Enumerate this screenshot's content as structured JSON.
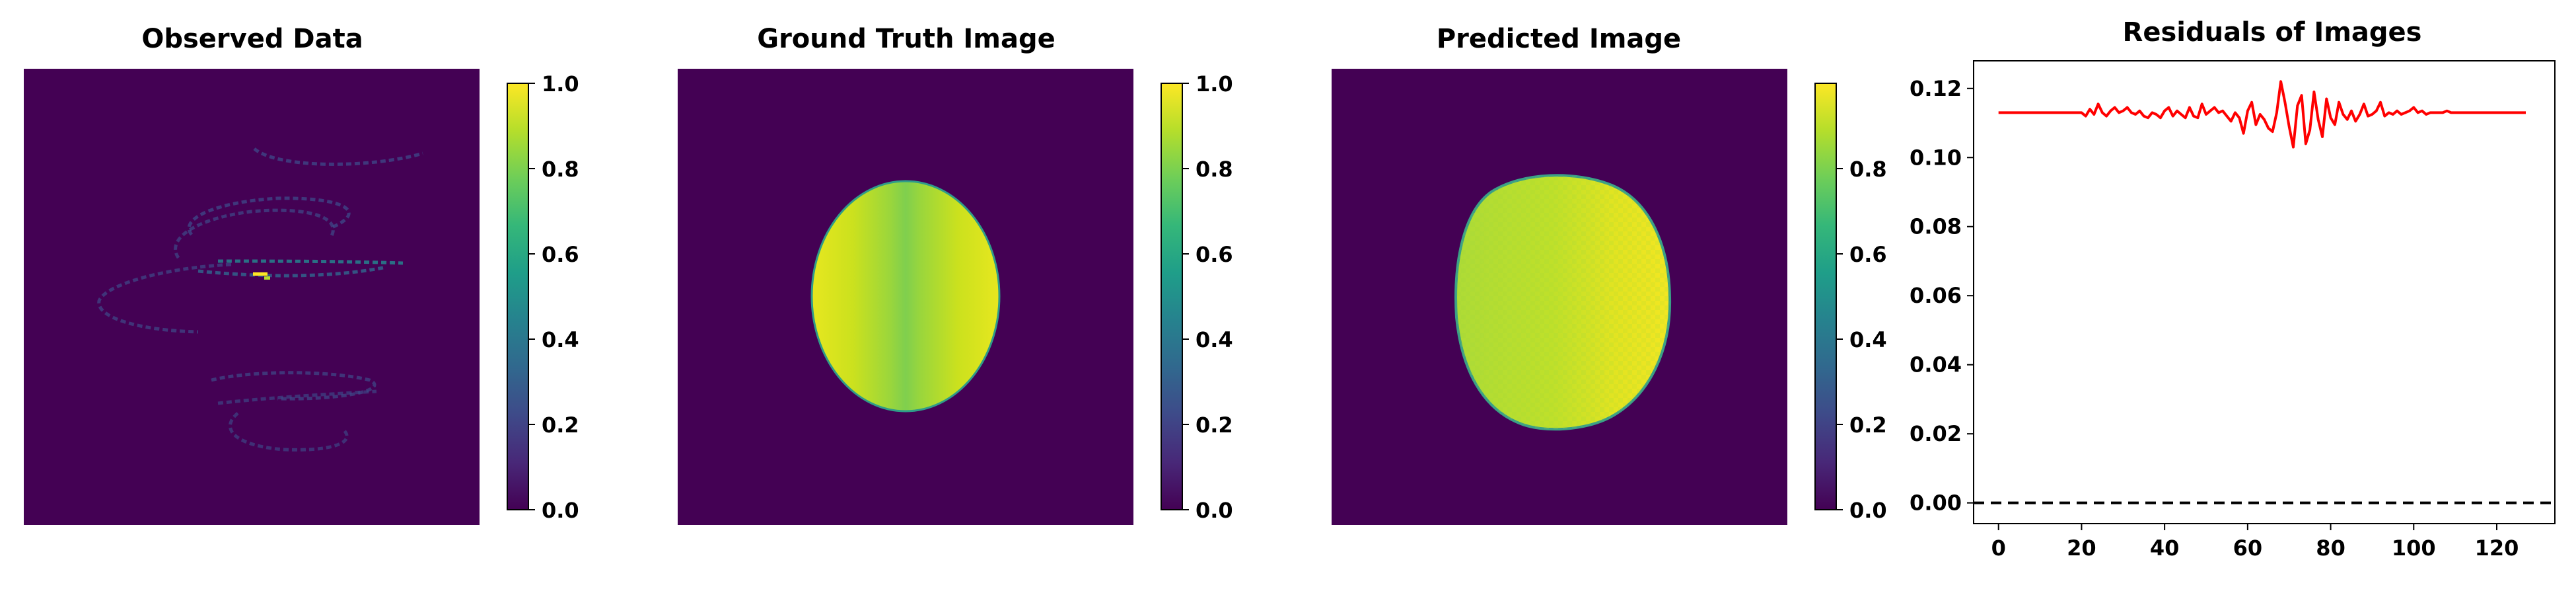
{
  "colors": {
    "viridis": [
      "#440154",
      "#482878",
      "#3e4a89",
      "#31688e",
      "#26828e",
      "#1f9e89",
      "#35b779",
      "#6ece58",
      "#b5de2b",
      "#fde725"
    ],
    "residual_line": "#ff0000",
    "zero_line": "#000000"
  },
  "chart_data": [
    {
      "type": "heatmap",
      "title": "Observed Data",
      "image": "sparse spiral scan-trajectory samples on a dark background",
      "colorbar": {
        "range": [
          0.0,
          1.0
        ],
        "ticks": [
          "0.0",
          "0.2",
          "0.4",
          "0.6",
          "0.8",
          "1.0"
        ],
        "colormap": "viridis"
      }
    },
    {
      "type": "heatmap",
      "title": "Ground Truth Image",
      "image": "ellipse phantom, yellow at the left and right edges, green along the vertical centre",
      "colorbar": {
        "range": [
          0.0,
          1.0
        ],
        "ticks": [
          "0.0",
          "0.2",
          "0.4",
          "0.6",
          "0.8",
          "1.0"
        ],
        "colormap": "viridis"
      }
    },
    {
      "type": "heatmap",
      "title": "Predicted Image",
      "image": "noisy reconstructed ellipse, greener on the left and brighter yellow on the right",
      "colorbar": {
        "range": [
          0.0,
          0.99
        ],
        "ticks": [
          "0.0",
          "0.2",
          "0.4",
          "0.6",
          "0.8"
        ],
        "colormap": "viridis"
      }
    },
    {
      "type": "line",
      "title": "Residuals of Images",
      "xlim": [
        -6,
        134
      ],
      "ylim": [
        -0.006,
        0.128
      ],
      "xticks": [
        "0",
        "20",
        "40",
        "60",
        "80",
        "100",
        "120"
      ],
      "yticks": [
        "0.00",
        "0.02",
        "0.04",
        "0.06",
        "0.08",
        "0.10",
        "0.12"
      ],
      "grid": false,
      "series": [
        {
          "style": "solid red line",
          "x_start": 0,
          "x_step": 1,
          "values": [
            0.113,
            0.113,
            0.113,
            0.113,
            0.113,
            0.113,
            0.113,
            0.113,
            0.113,
            0.113,
            0.113,
            0.113,
            0.113,
            0.113,
            0.113,
            0.113,
            0.113,
            0.113,
            0.113,
            0.113,
            0.113,
            0.112,
            0.114,
            0.1125,
            0.1155,
            0.113,
            0.112,
            0.1135,
            0.1145,
            0.113,
            0.1135,
            0.1145,
            0.113,
            0.1125,
            0.1135,
            0.112,
            0.1115,
            0.113,
            0.1125,
            0.1115,
            0.1135,
            0.1145,
            0.112,
            0.1135,
            0.1125,
            0.1115,
            0.1145,
            0.112,
            0.1115,
            0.1155,
            0.1125,
            0.1135,
            0.1145,
            0.113,
            0.1135,
            0.112,
            0.1105,
            0.113,
            0.1115,
            0.107,
            0.1135,
            0.116,
            0.1095,
            0.1125,
            0.111,
            0.1085,
            0.1075,
            0.113,
            0.122,
            0.116,
            0.109,
            0.103,
            0.115,
            0.118,
            0.104,
            0.108,
            0.119,
            0.111,
            0.106,
            0.117,
            0.1115,
            0.1095,
            0.116,
            0.1125,
            0.111,
            0.1135,
            0.1105,
            0.1125,
            0.1155,
            0.112,
            0.1125,
            0.1135,
            0.116,
            0.112,
            0.113,
            0.1125,
            0.1135,
            0.1125,
            0.113,
            0.1135,
            0.1145,
            0.113,
            0.1135,
            0.1125,
            0.113,
            0.113,
            0.113,
            0.113,
            0.1135,
            0.113,
            0.113,
            0.113,
            0.113,
            0.113,
            0.113,
            0.113,
            0.113,
            0.113,
            0.113,
            0.113,
            0.113,
            0.113,
            0.113,
            0.113,
            0.113,
            0.113,
            0.113,
            0.113
          ]
        },
        {
          "style": "dashed black horizontal line",
          "y": 0.0
        }
      ]
    }
  ]
}
